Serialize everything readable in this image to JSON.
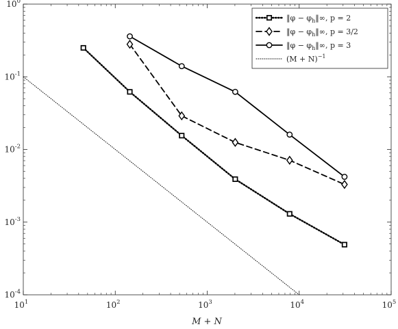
{
  "chart_data": {
    "type": "line",
    "xscale": "log",
    "yscale": "log",
    "xlim": [
      10,
      100000
    ],
    "ylim": [
      0.0001,
      1
    ],
    "grid": false,
    "legend_placement": "top-right",
    "xlabel": "M + N",
    "ylabel": "",
    "title": "",
    "x_ticks": [
      {
        "base": "10",
        "exp": "1"
      },
      {
        "base": "10",
        "exp": "2"
      },
      {
        "base": "10",
        "exp": "3"
      },
      {
        "base": "10",
        "exp": "4"
      },
      {
        "base": "10",
        "exp": "5"
      }
    ],
    "y_ticks": [
      {
        "base": "10",
        "exp": "-4"
      },
      {
        "base": "10",
        "exp": "-3"
      },
      {
        "base": "10",
        "exp": "-2"
      },
      {
        "base": "10",
        "exp": "-1"
      },
      {
        "base": "10",
        "exp": "0"
      }
    ],
    "series": [
      {
        "name": "‖φ − φh‖∞, p = 2",
        "legend_text": "‖φ − φ",
        "legend_sub": "h",
        "legend_tail": "‖∞,  p = 2",
        "style": "dotted",
        "marker": "square",
        "color": "#000000",
        "x": [
          45,
          144,
          528,
          2016,
          7872,
          31104
        ],
        "y": [
          0.25,
          0.062,
          0.0155,
          0.0039,
          0.0013,
          0.00049
        ]
      },
      {
        "name": "‖φ − φh‖∞, p = 3/2",
        "legend_text": "‖φ − φ",
        "legend_sub": "h",
        "legend_tail": "‖∞,  p = 3/2",
        "style": "dashed",
        "marker": "diamond",
        "color": "#000000",
        "x": [
          144,
          528,
          2016,
          7872,
          31104
        ],
        "y": [
          0.28,
          0.029,
          0.0125,
          0.0071,
          0.0033
        ]
      },
      {
        "name": "‖φ − φh‖∞, p = 3",
        "legend_text": "‖φ − φ",
        "legend_sub": "h",
        "legend_tail": "‖∞,  p = 3",
        "style": "solid",
        "marker": "circle",
        "color": "#000000",
        "x": [
          144,
          528,
          2016,
          7872,
          31104
        ],
        "y": [
          0.36,
          0.14,
          0.062,
          0.016,
          0.0042
        ]
      },
      {
        "name": "(M + N)^−1",
        "legend_text": "(M + N)",
        "legend_sup": "−1",
        "style": "thin-dotted",
        "marker": "none",
        "color": "#000000",
        "x": [
          10,
          10000
        ],
        "y": [
          0.1,
          0.0001
        ]
      }
    ]
  }
}
